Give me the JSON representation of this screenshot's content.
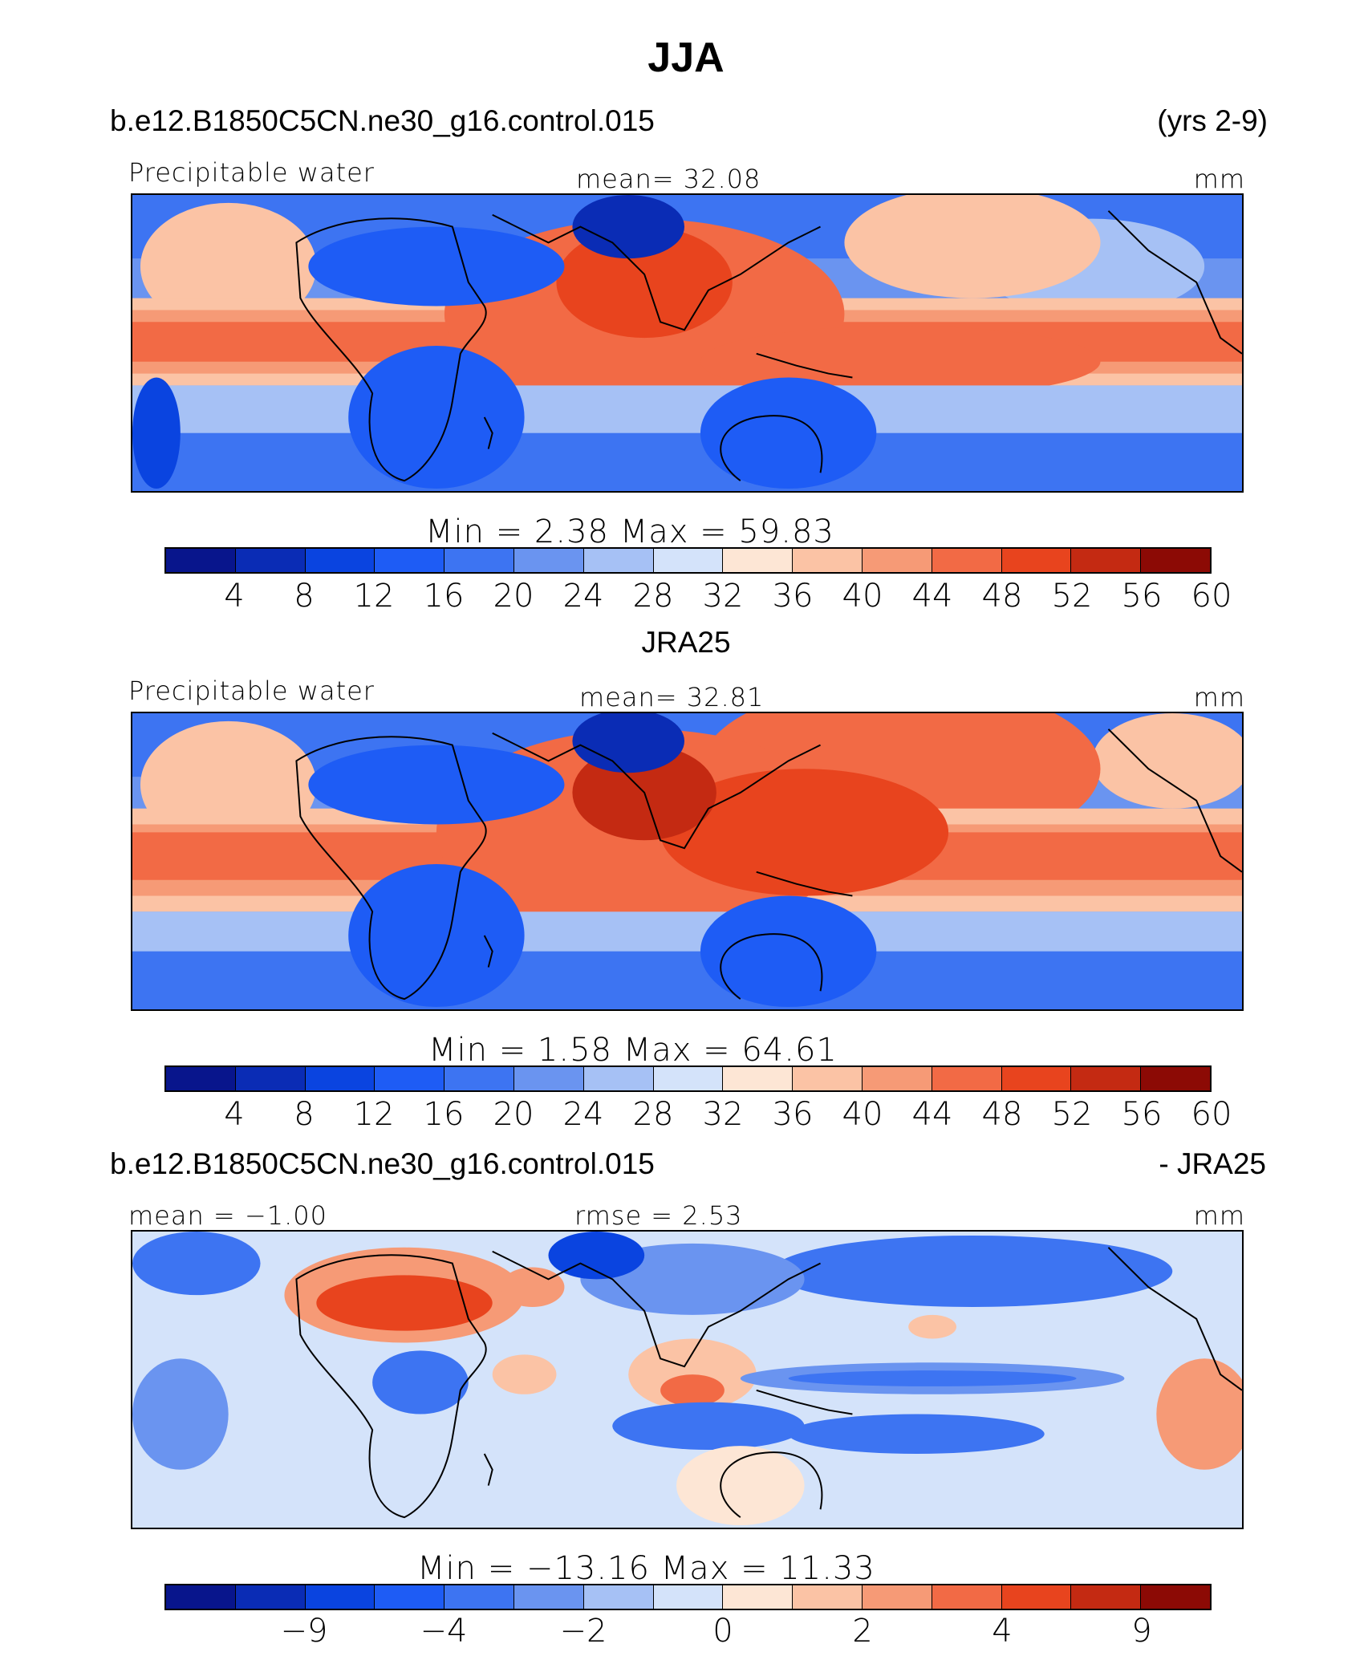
{
  "title": "JJA",
  "model_case": "b.e12.B1850C5CN.ne30_g16.control.015",
  "years": "(yrs 2-9)",
  "obs_case": "JRA25",
  "diff_suffix": "- JRA25",
  "panels": [
    {
      "variable": "Precipitable water",
      "mean_text": "mean=   32.08",
      "units": "mm",
      "minmax_text": "Min  =     2.38  Max  =    59.83",
      "tick_labels": [
        "4",
        "8",
        "12",
        "16",
        "20",
        "24",
        "28",
        "32",
        "36",
        "40",
        "44",
        "48",
        "52",
        "56",
        "60"
      ],
      "colors": [
        "#08158c",
        "#0a2cb5",
        "#0a44e0",
        "#1e5cf5",
        "#3d74f2",
        "#6a94f0",
        "#a6c1f5",
        "#d4e3fa",
        "#fde6d5",
        "#fbc3a5",
        "#f69a76",
        "#f26a45",
        "#e8441e",
        "#c42a12",
        "#8c0a05"
      ]
    },
    {
      "variable": "Precipitable water",
      "mean_text": "mean=   32.81",
      "units": "mm",
      "minmax_text": "Min  =     1.58  Max  =    64.61",
      "tick_labels": [
        "4",
        "8",
        "12",
        "16",
        "20",
        "24",
        "28",
        "32",
        "36",
        "40",
        "44",
        "48",
        "52",
        "56",
        "60"
      ],
      "colors": [
        "#08158c",
        "#0a2cb5",
        "#0a44e0",
        "#1e5cf5",
        "#3d74f2",
        "#6a94f0",
        "#a6c1f5",
        "#d4e3fa",
        "#fde6d5",
        "#fbc3a5",
        "#f69a76",
        "#f26a45",
        "#e8441e",
        "#c42a12",
        "#8c0a05"
      ]
    },
    {
      "mean_text": "mean =   −1.00",
      "rmse_text": "rmse =     2.53",
      "units": "mm",
      "minmax_text": "Min  = −13.16  Max  =    11.33",
      "tick_labels": [
        "−9",
        "−4",
        "−2",
        "0",
        "2",
        "4",
        "9"
      ],
      "colors": [
        "#08158c",
        "#0a2cb5",
        "#0a44e0",
        "#1e5cf5",
        "#3d74f2",
        "#6a94f0",
        "#a6c1f5",
        "#d4e3fa",
        "#fde6d5",
        "#fbc3a5",
        "#f69a76",
        "#f26a45",
        "#e8441e",
        "#c42a12",
        "#8c0a05"
      ]
    }
  ]
}
